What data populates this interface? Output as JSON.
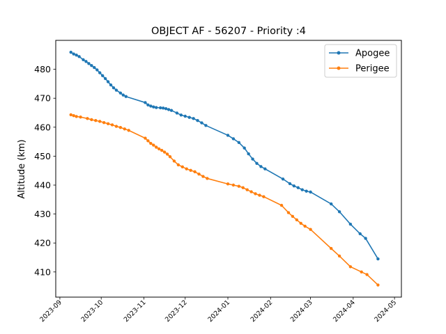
{
  "chart_data": {
    "type": "line",
    "title": "OBJECT AF - 56207 - Priority :4",
    "xlabel": "",
    "ylabel": "Altitude (km)",
    "xlim": [
      "2023-08-29",
      "2024-05-06"
    ],
    "ylim": [
      401.3,
      490.0
    ],
    "grid": false,
    "legend_position": "top-right",
    "x_ticks": [
      "2023-09",
      "2023-10",
      "2023-11",
      "2023-12",
      "2024-01",
      "2024-02",
      "2024-03",
      "2024-04",
      "2024-05"
    ],
    "y_ticks": [
      410,
      420,
      430,
      440,
      450,
      460,
      470,
      480
    ],
    "series": [
      {
        "name": "Apogee",
        "color": "#1f77b4",
        "points": [
          [
            "2023-09-09",
            485.9
          ],
          [
            "2023-09-11",
            485.3
          ],
          [
            "2023-09-13",
            484.9
          ],
          [
            "2023-09-15",
            484.4
          ],
          [
            "2023-09-18",
            483.3
          ],
          [
            "2023-09-20",
            482.7
          ],
          [
            "2023-09-22",
            482.0
          ],
          [
            "2023-09-24",
            481.3
          ],
          [
            "2023-09-26",
            480.6
          ],
          [
            "2023-09-28",
            479.8
          ],
          [
            "2023-09-30",
            478.8
          ],
          [
            "2023-10-02",
            477.8
          ],
          [
            "2023-10-04",
            476.8
          ],
          [
            "2023-10-06",
            475.7
          ],
          [
            "2023-10-08",
            474.6
          ],
          [
            "2023-10-10",
            473.6
          ],
          [
            "2023-10-12",
            472.8
          ],
          [
            "2023-10-15",
            471.8
          ],
          [
            "2023-10-17",
            471.1
          ],
          [
            "2023-10-19",
            470.6
          ],
          [
            "2023-11-02",
            468.5
          ],
          [
            "2023-11-04",
            467.7
          ],
          [
            "2023-11-06",
            467.3
          ],
          [
            "2023-11-08",
            467.0
          ],
          [
            "2023-11-10",
            466.8
          ],
          [
            "2023-11-13",
            466.7
          ],
          [
            "2023-11-15",
            466.6
          ],
          [
            "2023-11-17",
            466.4
          ],
          [
            "2023-11-19",
            466.1
          ],
          [
            "2023-11-21",
            465.8
          ],
          [
            "2023-11-25",
            464.9
          ],
          [
            "2023-11-28",
            464.2
          ],
          [
            "2023-12-01",
            463.8
          ],
          [
            "2023-12-04",
            463.4
          ],
          [
            "2023-12-07",
            463.0
          ],
          [
            "2023-12-10",
            462.3
          ],
          [
            "2023-12-13",
            461.5
          ],
          [
            "2023-12-16",
            460.6
          ],
          [
            "2024-01-01",
            457.2
          ],
          [
            "2024-01-05",
            456.0
          ],
          [
            "2024-01-09",
            454.7
          ],
          [
            "2024-01-13",
            452.8
          ],
          [
            "2024-01-16",
            450.8
          ],
          [
            "2024-01-19",
            449.0
          ],
          [
            "2024-01-22",
            447.5
          ],
          [
            "2024-01-25",
            446.4
          ],
          [
            "2024-01-28",
            445.6
          ],
          [
            "2024-02-10",
            442.1
          ],
          [
            "2024-02-15",
            440.5
          ],
          [
            "2024-02-18",
            439.7
          ],
          [
            "2024-02-21",
            439.1
          ],
          [
            "2024-02-24",
            438.4
          ],
          [
            "2024-02-27",
            437.9
          ],
          [
            "2024-03-01",
            437.6
          ],
          [
            "2024-03-16",
            433.5
          ],
          [
            "2024-03-22",
            430.8
          ],
          [
            "2024-03-30",
            426.5
          ],
          [
            "2024-04-06",
            423.2
          ],
          [
            "2024-04-10",
            421.6
          ],
          [
            "2024-04-19",
            414.5
          ]
        ]
      },
      {
        "name": "Perigee",
        "color": "#ff7f0e",
        "points": [
          [
            "2023-09-09",
            464.3
          ],
          [
            "2023-09-11",
            464.0
          ],
          [
            "2023-09-13",
            463.7
          ],
          [
            "2023-09-16",
            463.5
          ],
          [
            "2023-09-21",
            463.0
          ],
          [
            "2023-09-24",
            462.6
          ],
          [
            "2023-09-27",
            462.3
          ],
          [
            "2023-09-30",
            462.0
          ],
          [
            "2023-10-03",
            461.6
          ],
          [
            "2023-10-06",
            461.2
          ],
          [
            "2023-10-09",
            460.8
          ],
          [
            "2023-10-12",
            460.3
          ],
          [
            "2023-10-15",
            459.9
          ],
          [
            "2023-10-18",
            459.4
          ],
          [
            "2023-10-21",
            458.9
          ],
          [
            "2023-11-02",
            456.2
          ],
          [
            "2023-11-04",
            455.3
          ],
          [
            "2023-11-06",
            454.4
          ],
          [
            "2023-11-08",
            453.8
          ],
          [
            "2023-11-10",
            453.1
          ],
          [
            "2023-11-12",
            452.5
          ],
          [
            "2023-11-14",
            452.0
          ],
          [
            "2023-11-16",
            451.4
          ],
          [
            "2023-11-18",
            450.7
          ],
          [
            "2023-11-20",
            449.8
          ],
          [
            "2023-11-23",
            448.3
          ],
          [
            "2023-11-26",
            447.0
          ],
          [
            "2023-11-29",
            446.3
          ],
          [
            "2023-12-02",
            445.6
          ],
          [
            "2023-12-05",
            445.1
          ],
          [
            "2023-12-08",
            444.6
          ],
          [
            "2023-12-11",
            443.8
          ],
          [
            "2023-12-14",
            443.0
          ],
          [
            "2023-12-17",
            442.3
          ],
          [
            "2024-01-01",
            440.4
          ],
          [
            "2024-01-05",
            440.0
          ],
          [
            "2024-01-09",
            439.6
          ],
          [
            "2024-01-12",
            439.1
          ],
          [
            "2024-01-15",
            438.4
          ],
          [
            "2024-01-18",
            437.7
          ],
          [
            "2024-01-21",
            437.0
          ],
          [
            "2024-01-24",
            436.5
          ],
          [
            "2024-01-27",
            436.0
          ],
          [
            "2024-02-09",
            433.0
          ],
          [
            "2024-02-14",
            430.5
          ],
          [
            "2024-02-17",
            429.2
          ],
          [
            "2024-02-20",
            428.0
          ],
          [
            "2024-02-23",
            426.8
          ],
          [
            "2024-02-26",
            425.8
          ],
          [
            "2024-03-01",
            424.7
          ],
          [
            "2024-03-16",
            418.1
          ],
          [
            "2024-03-22",
            415.5
          ],
          [
            "2024-03-30",
            411.8
          ],
          [
            "2024-04-07",
            410.0
          ],
          [
            "2024-04-11",
            409.1
          ],
          [
            "2024-04-19",
            405.5
          ]
        ]
      }
    ]
  }
}
